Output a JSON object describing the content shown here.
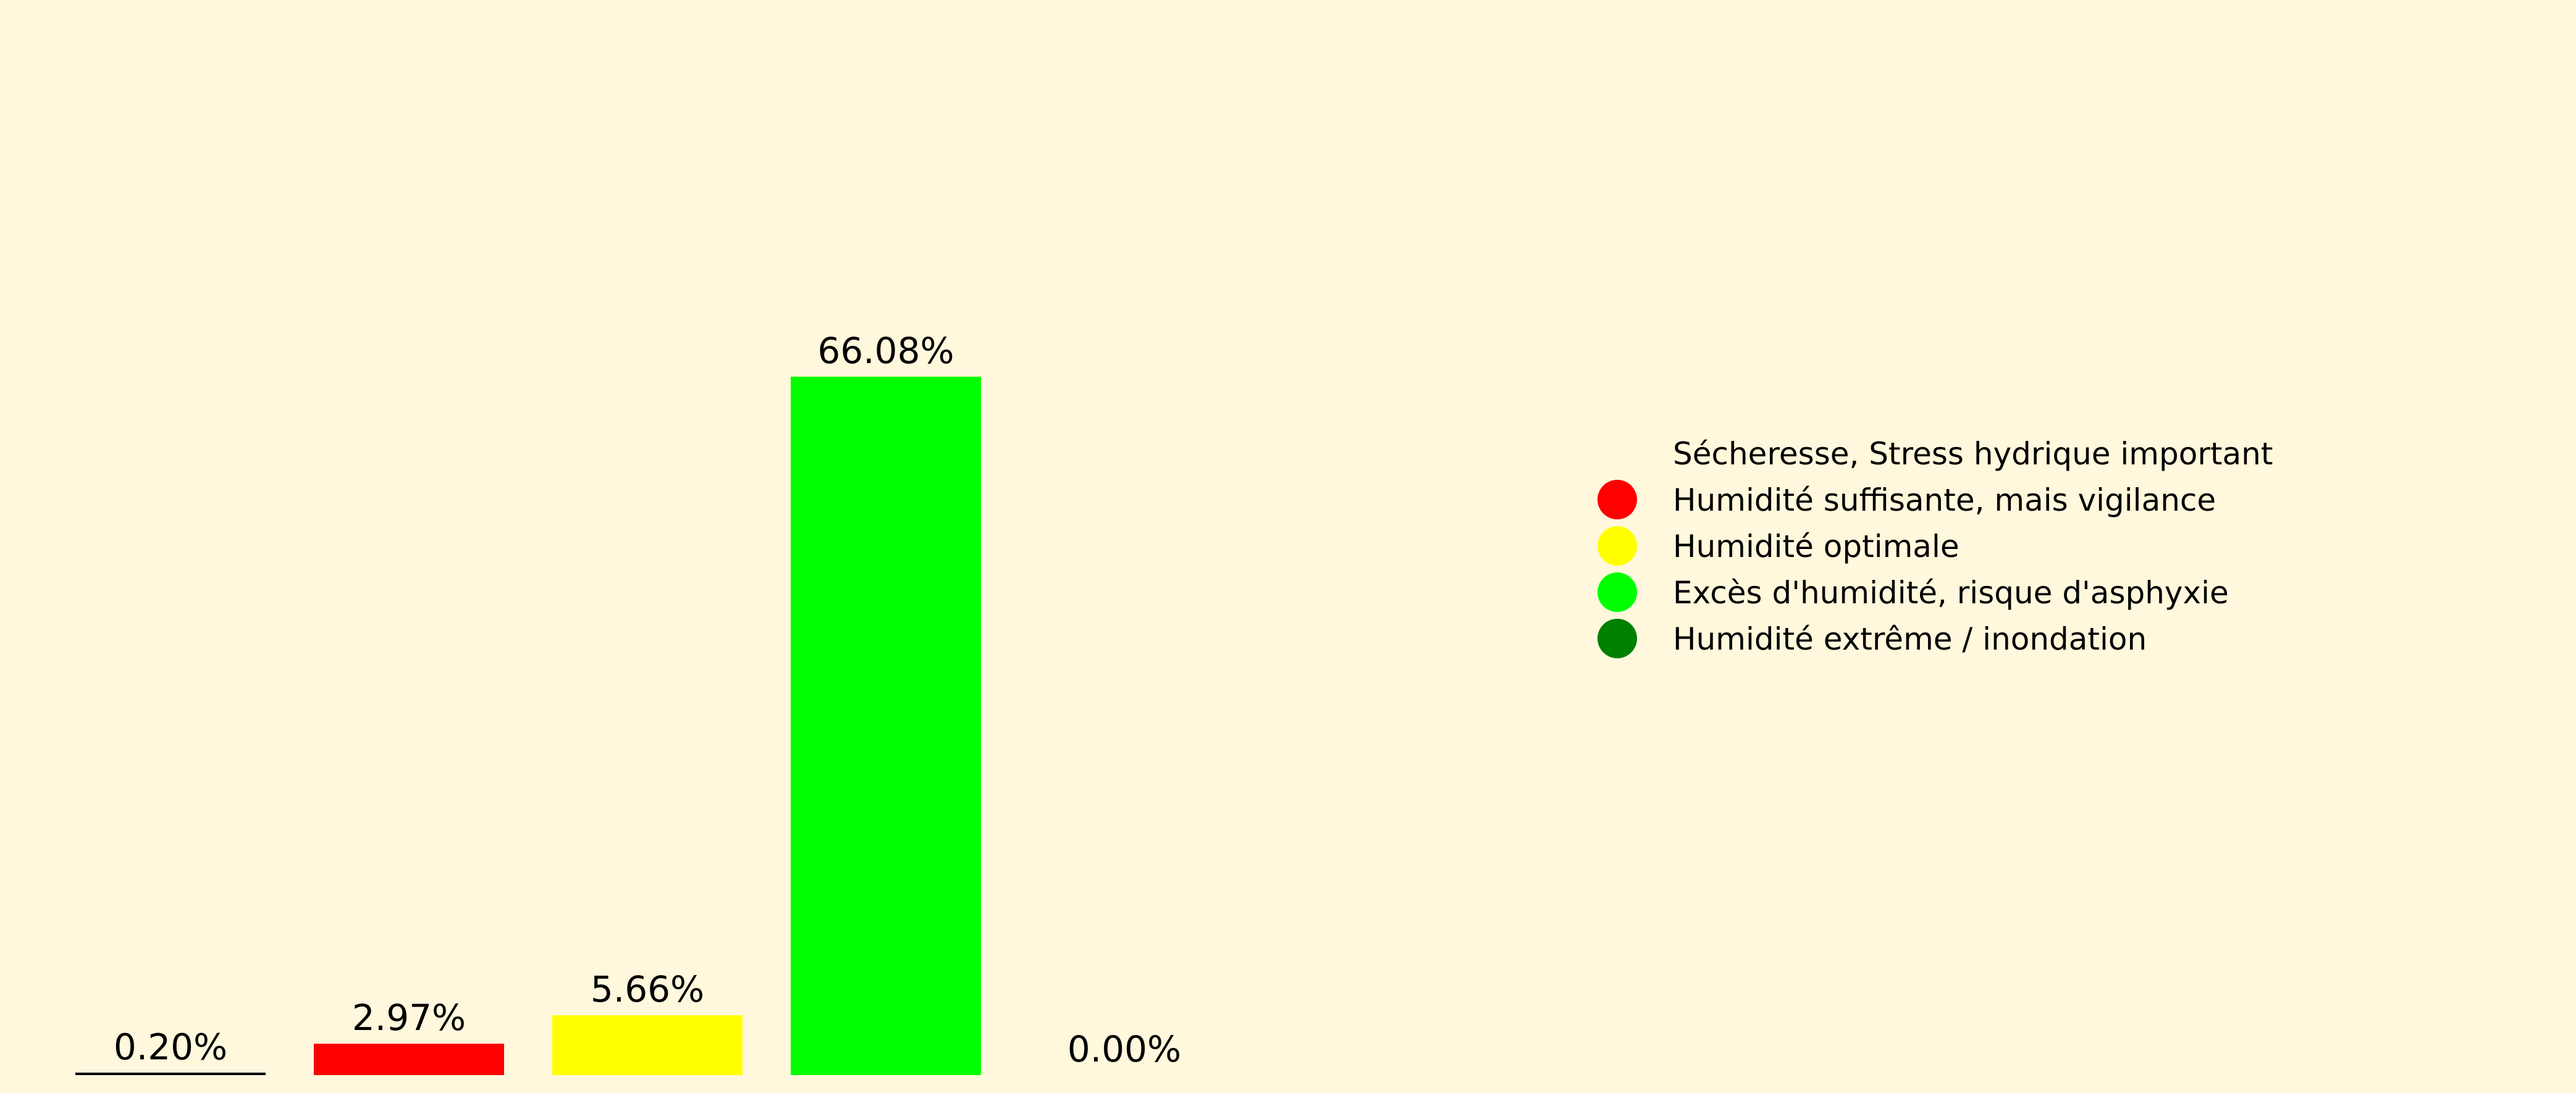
{
  "chart_data": {
    "type": "bar",
    "background": "#fff8dc",
    "categories": [
      "Sécheresse, Stress hydrique important",
      "Humidité suffisante, mais vigilance",
      "Humidité optimale",
      "Excès d'humidité, risque d'asphyxie",
      "Humidité extrême / inondation"
    ],
    "values": [
      0.2,
      2.97,
      5.66,
      66.08,
      0.0
    ],
    "value_labels": [
      "0.20%",
      "2.97%",
      "5.66%",
      "66.08%",
      "0.00%"
    ],
    "colors": [
      "#fff8dc",
      "#ff0000",
      "#ffff00",
      "#00ff00",
      "#008000"
    ],
    "baseline_color": "#000000",
    "ylim": [
      0,
      66.08
    ],
    "title": "",
    "xlabel": "",
    "ylabel": "",
    "grid": false,
    "axes_visible": false,
    "legend": {
      "placement": "right",
      "entries": [
        "Sécheresse, Stress hydrique important",
        "Humidité suffisante, mais vigilance",
        "Humidité optimale",
        "Excès d'humidité, risque d'asphyxie",
        "Humidité extrême / inondation"
      ]
    }
  }
}
